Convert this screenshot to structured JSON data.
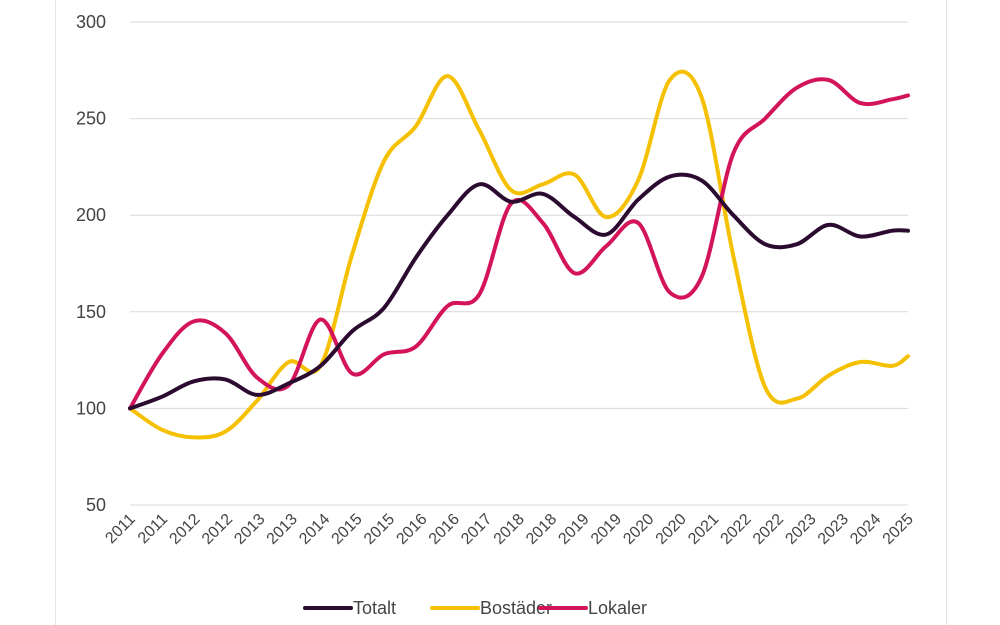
{
  "chart_data": {
    "type": "line",
    "title": "",
    "xlabel": "",
    "ylabel": "",
    "ylim": [
      50,
      300
    ],
    "yticks": [
      50,
      100,
      150,
      200,
      250,
      300
    ],
    "grid": true,
    "legend_position": "bottom",
    "x_tick_labels": [
      "2011",
      "2011",
      "2012",
      "2012",
      "2013",
      "2013",
      "2014",
      "2015",
      "2015",
      "2016",
      "2016",
      "2017",
      "2018",
      "2018",
      "2019",
      "2019",
      "2020",
      "2020",
      "2021",
      "2022",
      "2022",
      "2023",
      "2023",
      "2024",
      "2025"
    ],
    "x": [
      0,
      1,
      2,
      3,
      4,
      5,
      6,
      7,
      8,
      9,
      10,
      11,
      12,
      13,
      14,
      15,
      16,
      17,
      18,
      19,
      20,
      21,
      22,
      23,
      24,
      24.5
    ],
    "series": [
      {
        "name": "Totalt",
        "color": "#2b0b2f",
        "values": [
          100,
          106,
          114,
          115,
          107,
          113,
          122,
          140,
          152,
          178,
          200,
          216,
          207,
          211,
          199,
          190,
          208,
          220,
          218,
          200,
          185,
          185,
          195,
          189,
          192,
          192
        ]
      },
      {
        "name": "Bostäder",
        "color": "#f5c000",
        "values": [
          100,
          89,
          85,
          88,
          104,
          124,
          122,
          180,
          228,
          246,
          272,
          244,
          213,
          216,
          221,
          199,
          218,
          270,
          261,
          179,
          111,
          105,
          117,
          124,
          122,
          127
        ]
      },
      {
        "name": "Lokaler",
        "color": "#d4145a",
        "values": [
          100,
          128,
          145,
          139,
          116,
          112,
          146,
          118,
          128,
          132,
          153,
          159,
          206,
          196,
          170,
          184,
          196,
          160,
          168,
          232,
          250,
          266,
          270,
          258,
          260,
          262
        ]
      }
    ]
  }
}
